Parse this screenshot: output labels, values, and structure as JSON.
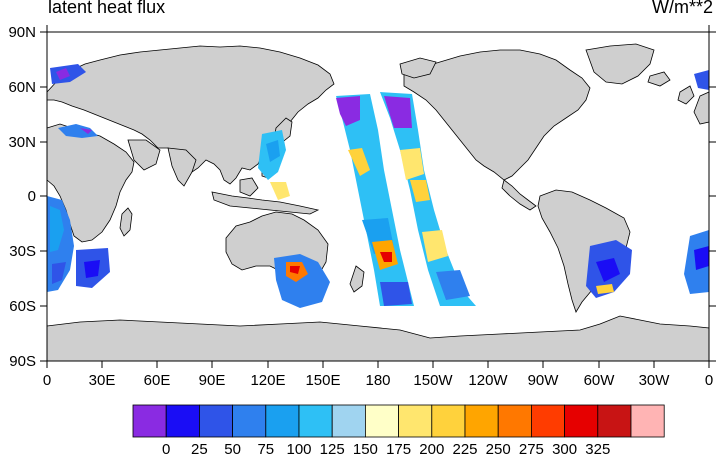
{
  "title": "latent heat flux",
  "units": "W/m**2",
  "map": {
    "projection": "cylindrical-equidistant",
    "center_longitude": 180,
    "land_color": "#cfcfcf",
    "ocean_color": "#ffffff",
    "y_ticks": [
      "90N",
      "60N",
      "30N",
      "0",
      "30S",
      "60S",
      "90S"
    ],
    "x_ticks": [
      "0",
      "30E",
      "60E",
      "90E",
      "120E",
      "150E",
      "180",
      "150W",
      "120W",
      "90W",
      "60W",
      "30W",
      "0"
    ]
  },
  "colorbar": {
    "levels": [
      "0",
      "25",
      "50",
      "75",
      "100",
      "125",
      "150",
      "175",
      "200",
      "225",
      "250",
      "275",
      "300",
      "325"
    ],
    "colors": [
      "#8a2be2",
      "#1a0df5",
      "#2f54e8",
      "#2f80ee",
      "#1aa0f0",
      "#2ec0f5",
      "#a0d4f0",
      "#ffffc8",
      "#ffe66e",
      "#ffd23c",
      "#ffa500",
      "#ff7800",
      "#ff3c00",
      "#e60000",
      "#c81414",
      "#ffb4b4"
    ]
  },
  "chart_data": {
    "type": "heatmap",
    "title": "latent heat flux",
    "units": "W/m**2",
    "x_ticks": [
      "0",
      "30E",
      "60E",
      "90E",
      "120E",
      "150E",
      "180",
      "150W",
      "120W",
      "90W",
      "60W",
      "30W",
      "0"
    ],
    "y_ticks": [
      "90N",
      "60N",
      "30N",
      "0",
      "30S",
      "60S",
      "90S"
    ],
    "colorbar_levels": [
      0,
      25,
      50,
      75,
      100,
      125,
      150,
      175,
      200,
      225,
      250,
      275,
      300,
      325
    ]
  }
}
